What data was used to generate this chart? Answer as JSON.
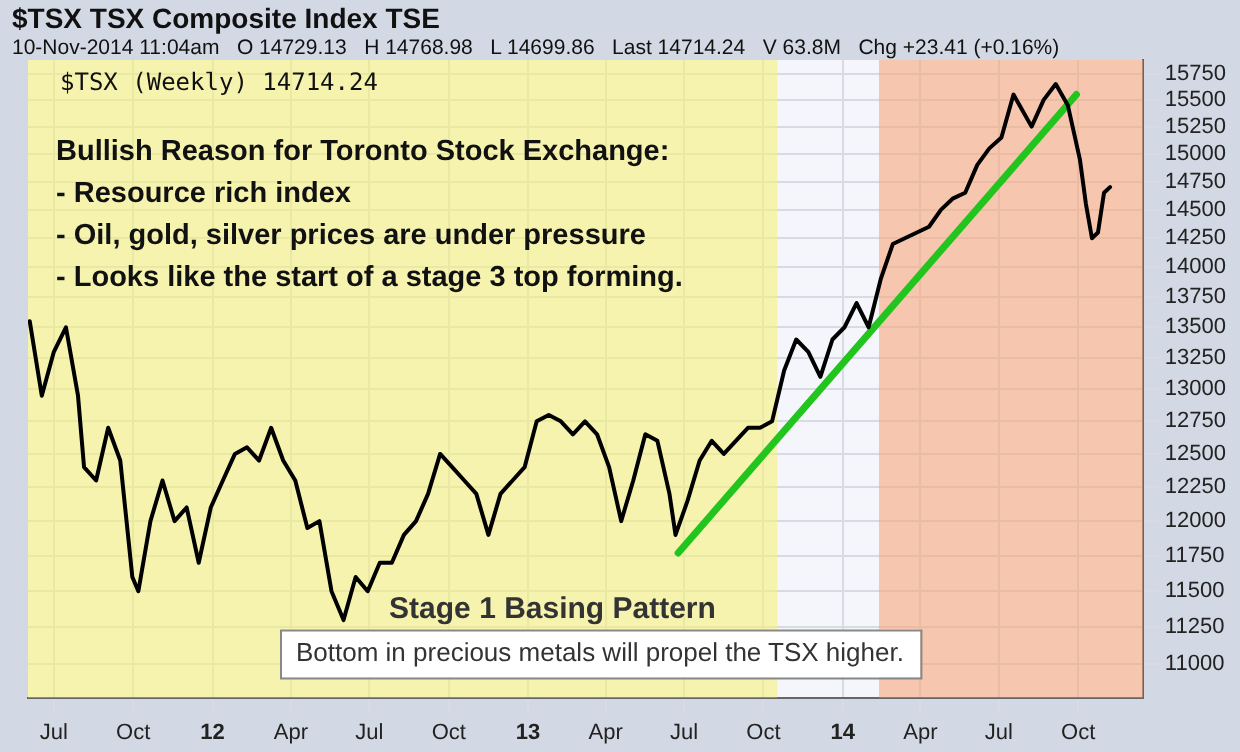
{
  "chart_data": {
    "type": "line",
    "title": "$TSX TSX Composite Index TSE",
    "subtitle": "10-Nov-2014 11:04am   O 14729.13   H 14768.98   L 14699.86   Last 14714.24   V 63.8M   Chg +23.41 (+0.16%)",
    "annotations": [
      "$TSX (Weekly) 14714.24",
      "Bullish Reason for Toronto Stock Exchange:",
      "- Resource rich index",
      "- Oil, gold, silver prices are under pressure",
      "- Looks like the start of a stage 3 top forming.",
      "Bottom in precious metals will propel the TSX higher."
    ],
    "series": [
      {
        "color": "#000000",
        "x": [
          "2011-06-03",
          "2011-06-17",
          "2011-07-01",
          "2011-07-15",
          "2011-07-29",
          "2011-08-05",
          "2011-08-19",
          "2011-09-02",
          "2011-09-16",
          "2011-09-30",
          "2011-10-07",
          "2011-10-21",
          "2011-11-04",
          "2011-11-18",
          "2011-12-02",
          "2011-12-16",
          "2011-12-30",
          "2012-01-13",
          "2012-01-27",
          "2012-02-10",
          "2012-02-24",
          "2012-03-09",
          "2012-03-23",
          "2012-04-06",
          "2012-04-20",
          "2012-05-04",
          "2012-05-18",
          "2012-06-01",
          "2012-06-15",
          "2012-06-29",
          "2012-07-13",
          "2012-07-27",
          "2012-08-10",
          "2012-08-24",
          "2012-09-07",
          "2012-09-21",
          "2012-10-05",
          "2012-10-19",
          "2012-11-02",
          "2012-11-16",
          "2012-11-30",
          "2012-12-14",
          "2012-12-28",
          "2013-01-11",
          "2013-01-25",
          "2013-02-08",
          "2013-02-22",
          "2013-03-08",
          "2013-03-22",
          "2013-04-05",
          "2013-04-19",
          "2013-05-03",
          "2013-05-17",
          "2013-05-31",
          "2013-06-14",
          "2013-06-21",
          "2013-07-05",
          "2013-07-19",
          "2013-08-02",
          "2013-08-16",
          "2013-08-30",
          "2013-09-13",
          "2013-09-27",
          "2013-10-11",
          "2013-10-25",
          "2013-11-08",
          "2013-11-22",
          "2013-12-06",
          "2013-12-20",
          "2014-01-03",
          "2014-01-17",
          "2014-01-31",
          "2014-02-14",
          "2014-02-28",
          "2014-03-14",
          "2014-03-28",
          "2014-04-11",
          "2014-04-25",
          "2014-05-09",
          "2014-05-23",
          "2014-06-06",
          "2014-06-20",
          "2014-07-04",
          "2014-07-18",
          "2014-07-25",
          "2014-08-08",
          "2014-08-22",
          "2014-09-05",
          "2014-09-19",
          "2014-10-03",
          "2014-10-10",
          "2014-10-17",
          "2014-10-24",
          "2014-10-31",
          "2014-11-07"
        ],
        "values": [
          13550,
          12950,
          13300,
          13500,
          12950,
          12400,
          12300,
          12700,
          12450,
          11600,
          11500,
          12000,
          12300,
          12000,
          12100,
          11700,
          12100,
          12300,
          12500,
          12550,
          12450,
          12700,
          12450,
          12300,
          11950,
          12000,
          11500,
          11300,
          11600,
          11500,
          11700,
          11700,
          11900,
          12000,
          12200,
          12500,
          12400,
          12300,
          12200,
          11900,
          12200,
          12300,
          12400,
          12750,
          12800,
          12750,
          12650,
          12750,
          12650,
          12400,
          12000,
          12300,
          12650,
          12600,
          12200,
          11900,
          12150,
          12450,
          12600,
          12500,
          12600,
          12700,
          12700,
          12750,
          13150,
          13400,
          13300,
          13100,
          13400,
          13500,
          13700,
          13500,
          13900,
          14200,
          14250,
          14300,
          14350,
          14500,
          14600,
          14650,
          14900,
          15050,
          15150,
          15550,
          15450,
          15250,
          15500,
          15650,
          15450,
          14950,
          14550,
          14250,
          14300,
          14650,
          14700
        ]
      },
      {
        "color": "#22c41e",
        "x": [
          "2013-06-24",
          "2014-09-29"
        ],
        "values": [
          11770,
          15550
        ]
      }
    ],
    "bands": [
      {
        "axis": "x",
        "from": "2011-06-01",
        "to": "2013-10-17",
        "color": "#f7f27c",
        "label": "Stage 1 Basing Pattern"
      },
      {
        "axis": "x",
        "from": "2014-02-12",
        "to": "2014-12-15",
        "color": "#f9a77c"
      }
    ],
    "xlim": [
      "2011-06-01",
      "2014-12-15"
    ],
    "xticks": [
      {
        "value": "2011-07-01",
        "label": "Jul"
      },
      {
        "value": "2011-10-01",
        "label": "Oct"
      },
      {
        "value": "2012-01-01",
        "label": "12"
      },
      {
        "value": "2012-04-01",
        "label": "Apr"
      },
      {
        "value": "2012-07-01",
        "label": "Jul"
      },
      {
        "value": "2012-10-01",
        "label": "Oct"
      },
      {
        "value": "2013-01-01",
        "label": "13"
      },
      {
        "value": "2013-04-01",
        "label": "Apr"
      },
      {
        "value": "2013-07-01",
        "label": "Jul"
      },
      {
        "value": "2013-10-01",
        "label": "Oct"
      },
      {
        "value": "2014-01-01",
        "label": "14"
      },
      {
        "value": "2014-04-01",
        "label": "Apr"
      },
      {
        "value": "2014-07-01",
        "label": "Jul"
      },
      {
        "value": "2014-10-01",
        "label": "Oct"
      }
    ],
    "ylim": [
      10780,
      15880
    ],
    "yticks": [
      11000,
      11250,
      11500,
      11750,
      12000,
      12250,
      12500,
      12750,
      13000,
      13250,
      13500,
      13750,
      14000,
      14250,
      14500,
      14750,
      15000,
      15250,
      15500,
      15750
    ],
    "log": true,
    "grid": true,
    "marker": "none",
    "line_style": "solid"
  }
}
